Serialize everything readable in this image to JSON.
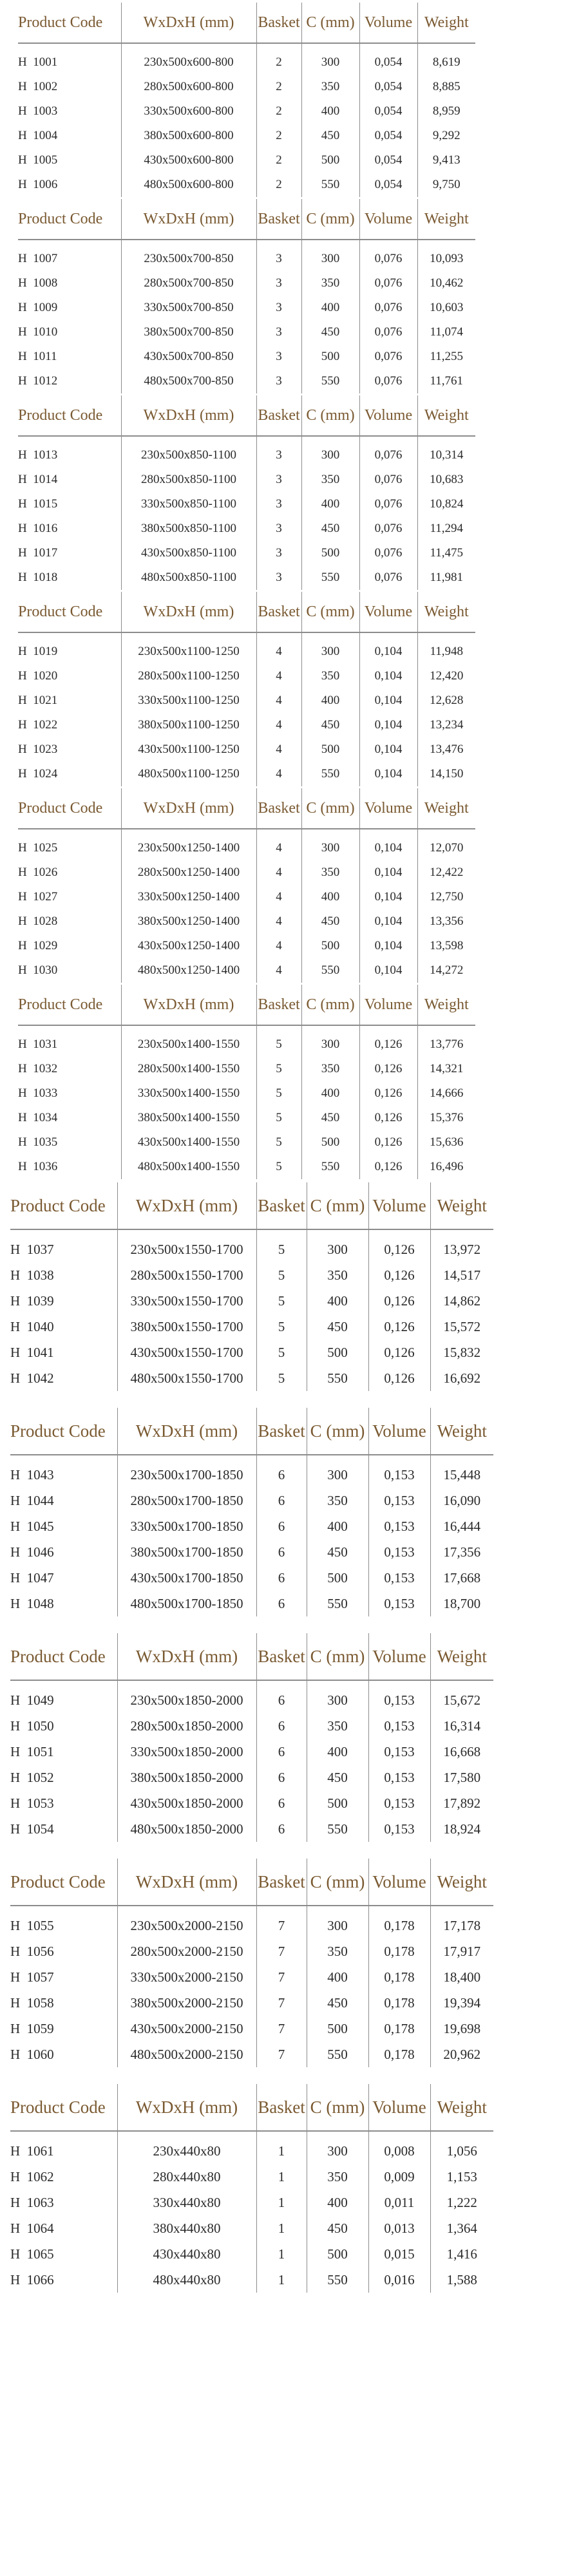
{
  "headers": {
    "code": "Product Code",
    "dims": "WxDxH (mm)",
    "basket": "Basket",
    "c": "C (mm)",
    "volume": "Volume",
    "weight": "Weight"
  },
  "tables": [
    {
      "rows": [
        {
          "code": "H  1001",
          "dims": "230x500x600-800",
          "basket": "2",
          "c": "300",
          "volume": "0,054",
          "weight": "8,619"
        },
        {
          "code": "H  1002",
          "dims": "280x500x600-800",
          "basket": "2",
          "c": "350",
          "volume": "0,054",
          "weight": "8,885"
        },
        {
          "code": "H  1003",
          "dims": "330x500x600-800",
          "basket": "2",
          "c": "400",
          "volume": "0,054",
          "weight": "8,959"
        },
        {
          "code": "H  1004",
          "dims": "380x500x600-800",
          "basket": "2",
          "c": "450",
          "volume": "0,054",
          "weight": "9,292"
        },
        {
          "code": "H  1005",
          "dims": "430x500x600-800",
          "basket": "2",
          "c": "500",
          "volume": "0,054",
          "weight": "9,413"
        },
        {
          "code": "H  1006",
          "dims": "480x500x600-800",
          "basket": "2",
          "c": "550",
          "volume": "0,054",
          "weight": "9,750"
        }
      ]
    },
    {
      "rows": [
        {
          "code": "H  1007",
          "dims": "230x500x700-850",
          "basket": "3",
          "c": "300",
          "volume": "0,076",
          "weight": "10,093"
        },
        {
          "code": "H  1008",
          "dims": "280x500x700-850",
          "basket": "3",
          "c": "350",
          "volume": "0,076",
          "weight": "10,462"
        },
        {
          "code": "H  1009",
          "dims": "330x500x700-850",
          "basket": "3",
          "c": "400",
          "volume": "0,076",
          "weight": "10,603"
        },
        {
          "code": "H  1010",
          "dims": "380x500x700-850",
          "basket": "3",
          "c": "450",
          "volume": "0,076",
          "weight": "11,074"
        },
        {
          "code": "H  1011",
          "dims": "430x500x700-850",
          "basket": "3",
          "c": "500",
          "volume": "0,076",
          "weight": "11,255"
        },
        {
          "code": "H  1012",
          "dims": "480x500x700-850",
          "basket": "3",
          "c": "550",
          "volume": "0,076",
          "weight": "11,761"
        }
      ]
    },
    {
      "rows": [
        {
          "code": "H  1013",
          "dims": "230x500x850-1100",
          "basket": "3",
          "c": "300",
          "volume": "0,076",
          "weight": "10,314"
        },
        {
          "code": "H  1014",
          "dims": "280x500x850-1100",
          "basket": "3",
          "c": "350",
          "volume": "0,076",
          "weight": "10,683"
        },
        {
          "code": "H  1015",
          "dims": "330x500x850-1100",
          "basket": "3",
          "c": "400",
          "volume": "0,076",
          "weight": "10,824"
        },
        {
          "code": "H  1016",
          "dims": "380x500x850-1100",
          "basket": "3",
          "c": "450",
          "volume": "0,076",
          "weight": "11,294"
        },
        {
          "code": "H  1017",
          "dims": "430x500x850-1100",
          "basket": "3",
          "c": "500",
          "volume": "0,076",
          "weight": "11,475"
        },
        {
          "code": "H  1018",
          "dims": "480x500x850-1100",
          "basket": "3",
          "c": "550",
          "volume": "0,076",
          "weight": "11,981"
        }
      ]
    },
    {
      "rows": [
        {
          "code": "H  1019",
          "dims": "230x500x1100-1250",
          "basket": "4",
          "c": "300",
          "volume": "0,104",
          "weight": "11,948"
        },
        {
          "code": "H  1020",
          "dims": "280x500x1100-1250",
          "basket": "4",
          "c": "350",
          "volume": "0,104",
          "weight": "12,420"
        },
        {
          "code": "H  1021",
          "dims": "330x500x1100-1250",
          "basket": "4",
          "c": "400",
          "volume": "0,104",
          "weight": "12,628"
        },
        {
          "code": "H  1022",
          "dims": "380x500x1100-1250",
          "basket": "4",
          "c": "450",
          "volume": "0,104",
          "weight": "13,234"
        },
        {
          "code": "H  1023",
          "dims": "430x500x1100-1250",
          "basket": "4",
          "c": "500",
          "volume": "0,104",
          "weight": "13,476"
        },
        {
          "code": "H  1024",
          "dims": "480x500x1100-1250",
          "basket": "4",
          "c": "550",
          "volume": "0,104",
          "weight": "14,150"
        }
      ]
    },
    {
      "rows": [
        {
          "code": "H  1025",
          "dims": "230x500x1250-1400",
          "basket": "4",
          "c": "300",
          "volume": "0,104",
          "weight": "12,070"
        },
        {
          "code": "H  1026",
          "dims": "280x500x1250-1400",
          "basket": "4",
          "c": "350",
          "volume": "0,104",
          "weight": "12,422"
        },
        {
          "code": "H  1027",
          "dims": "330x500x1250-1400",
          "basket": "4",
          "c": "400",
          "volume": "0,104",
          "weight": "12,750"
        },
        {
          "code": "H  1028",
          "dims": "380x500x1250-1400",
          "basket": "4",
          "c": "450",
          "volume": "0,104",
          "weight": "13,356"
        },
        {
          "code": "H  1029",
          "dims": "430x500x1250-1400",
          "basket": "4",
          "c": "500",
          "volume": "0,104",
          "weight": "13,598"
        },
        {
          "code": "H  1030",
          "dims": "480x500x1250-1400",
          "basket": "4",
          "c": "550",
          "volume": "0,104",
          "weight": "14,272"
        }
      ]
    },
    {
      "rows": [
        {
          "code": "H  1031",
          "dims": "230x500x1400-1550",
          "basket": "5",
          "c": "300",
          "volume": "0,126",
          "weight": "13,776"
        },
        {
          "code": "H  1032",
          "dims": "280x500x1400-1550",
          "basket": "5",
          "c": "350",
          "volume": "0,126",
          "weight": "14,321"
        },
        {
          "code": "H  1033",
          "dims": "330x500x1400-1550",
          "basket": "5",
          "c": "400",
          "volume": "0,126",
          "weight": "14,666"
        },
        {
          "code": "H  1034",
          "dims": "380x500x1400-1550",
          "basket": "5",
          "c": "450",
          "volume": "0,126",
          "weight": "15,376"
        },
        {
          "code": "H  1035",
          "dims": "430x500x1400-1550",
          "basket": "5",
          "c": "500",
          "volume": "0,126",
          "weight": "15,636"
        },
        {
          "code": "H  1036",
          "dims": "480x500x1400-1550",
          "basket": "5",
          "c": "550",
          "volume": "0,126",
          "weight": "16,496"
        }
      ]
    },
    {
      "rows": [
        {
          "code": "H  1037",
          "dims": "230x500x1550-1700",
          "basket": "5",
          "c": "300",
          "volume": "0,126",
          "weight": "13,972"
        },
        {
          "code": "H  1038",
          "dims": "280x500x1550-1700",
          "basket": "5",
          "c": "350",
          "volume": "0,126",
          "weight": "14,517"
        },
        {
          "code": "H  1039",
          "dims": "330x500x1550-1700",
          "basket": "5",
          "c": "400",
          "volume": "0,126",
          "weight": "14,862"
        },
        {
          "code": "H  1040",
          "dims": "380x500x1550-1700",
          "basket": "5",
          "c": "450",
          "volume": "0,126",
          "weight": "15,572"
        },
        {
          "code": "H  1041",
          "dims": "430x500x1550-1700",
          "basket": "5",
          "c": "500",
          "volume": "0,126",
          "weight": "15,832"
        },
        {
          "code": "H  1042",
          "dims": "480x500x1550-1700",
          "basket": "5",
          "c": "550",
          "volume": "0,126",
          "weight": "16,692"
        }
      ]
    },
    {
      "rows": [
        {
          "code": "H  1043",
          "dims": "230x500x1700-1850",
          "basket": "6",
          "c": "300",
          "volume": "0,153",
          "weight": "15,448"
        },
        {
          "code": "H  1044",
          "dims": "280x500x1700-1850",
          "basket": "6",
          "c": "350",
          "volume": "0,153",
          "weight": "16,090"
        },
        {
          "code": "H  1045",
          "dims": "330x500x1700-1850",
          "basket": "6",
          "c": "400",
          "volume": "0,153",
          "weight": "16,444"
        },
        {
          "code": "H  1046",
          "dims": "380x500x1700-1850",
          "basket": "6",
          "c": "450",
          "volume": "0,153",
          "weight": "17,356"
        },
        {
          "code": "H  1047",
          "dims": "430x500x1700-1850",
          "basket": "6",
          "c": "500",
          "volume": "0,153",
          "weight": "17,668"
        },
        {
          "code": "H  1048",
          "dims": "480x500x1700-1850",
          "basket": "6",
          "c": "550",
          "volume": "0,153",
          "weight": "18,700"
        }
      ]
    },
    {
      "rows": [
        {
          "code": "H  1049",
          "dims": "230x500x1850-2000",
          "basket": "6",
          "c": "300",
          "volume": "0,153",
          "weight": "15,672"
        },
        {
          "code": "H  1050",
          "dims": "280x500x1850-2000",
          "basket": "6",
          "c": "350",
          "volume": "0,153",
          "weight": "16,314"
        },
        {
          "code": "H  1051",
          "dims": "330x500x1850-2000",
          "basket": "6",
          "c": "400",
          "volume": "0,153",
          "weight": "16,668"
        },
        {
          "code": "H  1052",
          "dims": "380x500x1850-2000",
          "basket": "6",
          "c": "450",
          "volume": "0,153",
          "weight": "17,580"
        },
        {
          "code": "H  1053",
          "dims": "430x500x1850-2000",
          "basket": "6",
          "c": "500",
          "volume": "0,153",
          "weight": "17,892"
        },
        {
          "code": "H  1054",
          "dims": "480x500x1850-2000",
          "basket": "6",
          "c": "550",
          "volume": "0,153",
          "weight": "18,924"
        }
      ]
    },
    {
      "rows": [
        {
          "code": "H  1055",
          "dims": "230x500x2000-2150",
          "basket": "7",
          "c": "300",
          "volume": "0,178",
          "weight": "17,178"
        },
        {
          "code": "H  1056",
          "dims": "280x500x2000-2150",
          "basket": "7",
          "c": "350",
          "volume": "0,178",
          "weight": "17,917"
        },
        {
          "code": "H  1057",
          "dims": "330x500x2000-2150",
          "basket": "7",
          "c": "400",
          "volume": "0,178",
          "weight": "18,400"
        },
        {
          "code": "H  1058",
          "dims": "380x500x2000-2150",
          "basket": "7",
          "c": "450",
          "volume": "0,178",
          "weight": "19,394"
        },
        {
          "code": "H  1059",
          "dims": "430x500x2000-2150",
          "basket": "7",
          "c": "500",
          "volume": "0,178",
          "weight": "19,698"
        },
        {
          "code": "H  1060",
          "dims": "480x500x2000-2150",
          "basket": "7",
          "c": "550",
          "volume": "0,178",
          "weight": "20,962"
        }
      ]
    },
    {
      "rows": [
        {
          "code": "H  1061",
          "dims": "230x440x80",
          "basket": "1",
          "c": "300",
          "volume": "0,008",
          "weight": "1,056"
        },
        {
          "code": "H  1062",
          "dims": "280x440x80",
          "basket": "1",
          "c": "350",
          "volume": "0,009",
          "weight": "1,153"
        },
        {
          "code": "H  1063",
          "dims": "330x440x80",
          "basket": "1",
          "c": "400",
          "volume": "0,011",
          "weight": "1,222"
        },
        {
          "code": "H  1064",
          "dims": "380x440x80",
          "basket": "1",
          "c": "450",
          "volume": "0,013",
          "weight": "1,364"
        },
        {
          "code": "H  1065",
          "dims": "430x440x80",
          "basket": "1",
          "c": "500",
          "volume": "0,015",
          "weight": "1,416"
        },
        {
          "code": "H  1066",
          "dims": "480x440x80",
          "basket": "1",
          "c": "550",
          "volume": "0,016",
          "weight": "1,588"
        }
      ]
    }
  ]
}
